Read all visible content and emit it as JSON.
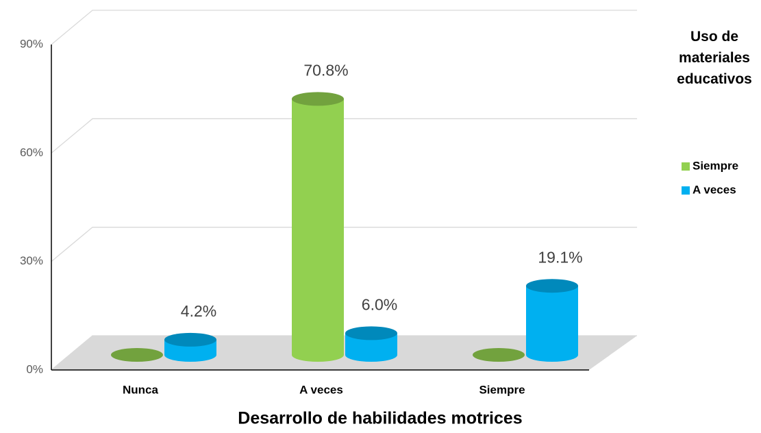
{
  "chart_data": {
    "type": "bar3d",
    "xlabel": "Desarrollo de habilidades motrices",
    "legend_title": "Uso de materiales educativos",
    "categories": [
      "Nunca",
      "A veces",
      "Siempre"
    ],
    "series": [
      {
        "name": "Siempre",
        "color": "#92d050",
        "values": [
          0,
          70.8,
          0
        ],
        "value_labels": [
          null,
          "70.8%",
          null
        ]
      },
      {
        "name": "A veces",
        "color": "#00b0f0",
        "values": [
          4.2,
          6.0,
          19.1
        ],
        "value_labels": [
          "4.2%",
          "6.0%",
          "19.1%"
        ]
      }
    ],
    "ylim": [
      0,
      90
    ],
    "yticks": [
      {
        "value": 0,
        "label": "0%"
      },
      {
        "value": 30,
        "label": "30%"
      },
      {
        "value": 60,
        "label": "60%"
      },
      {
        "value": 90,
        "label": "90%"
      }
    ],
    "grid": true,
    "legend": "right"
  }
}
